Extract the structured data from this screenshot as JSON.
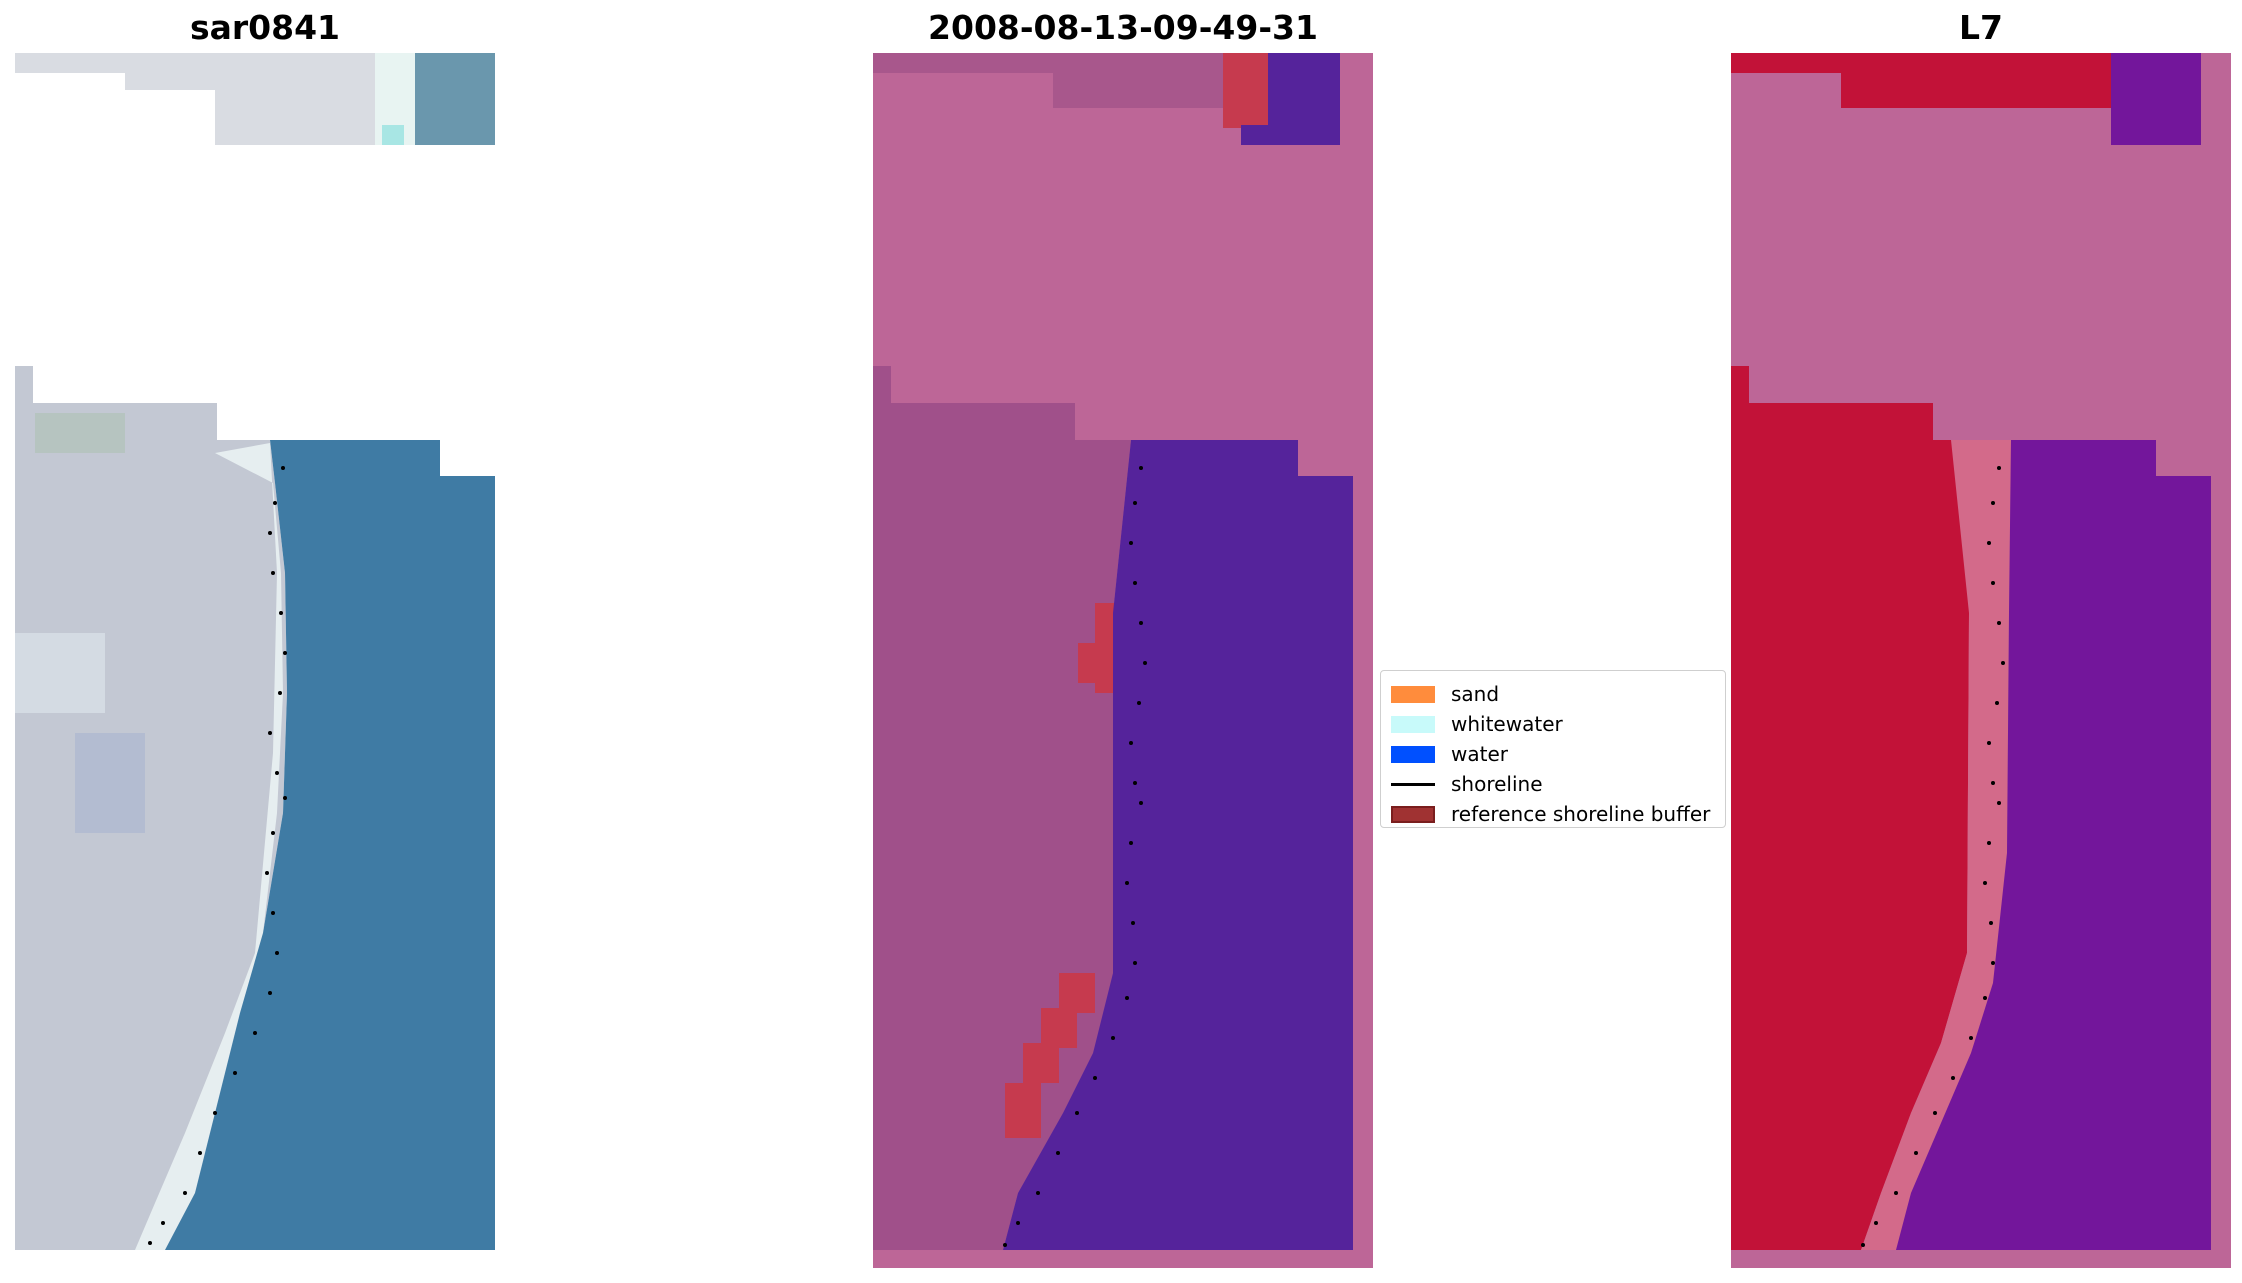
{
  "panels": [
    {
      "title": "sar0841"
    },
    {
      "title": "2008-08-13-09-49-31"
    },
    {
      "title": "L7"
    }
  ],
  "legend": {
    "items": [
      {
        "label": "sand",
        "color": "#ff8c3c"
      },
      {
        "label": "whitewater",
        "color": "#c8fafa"
      },
      {
        "label": "water",
        "color": "#0050ff"
      },
      {
        "label": "shoreline",
        "color": "#000000"
      },
      {
        "label": "reference shoreline buffer",
        "color": "#a03232"
      }
    ]
  },
  "colors": {
    "rgb_land": "#c3c8d3",
    "rgb_water": "#3f7ba4",
    "class_masked": "#bd6697",
    "class_land": "#a0508a",
    "class_water": "#55239b",
    "class_buffer": "#c63a4e",
    "nir_land": "#c21238",
    "nir_water": "#73169b"
  }
}
